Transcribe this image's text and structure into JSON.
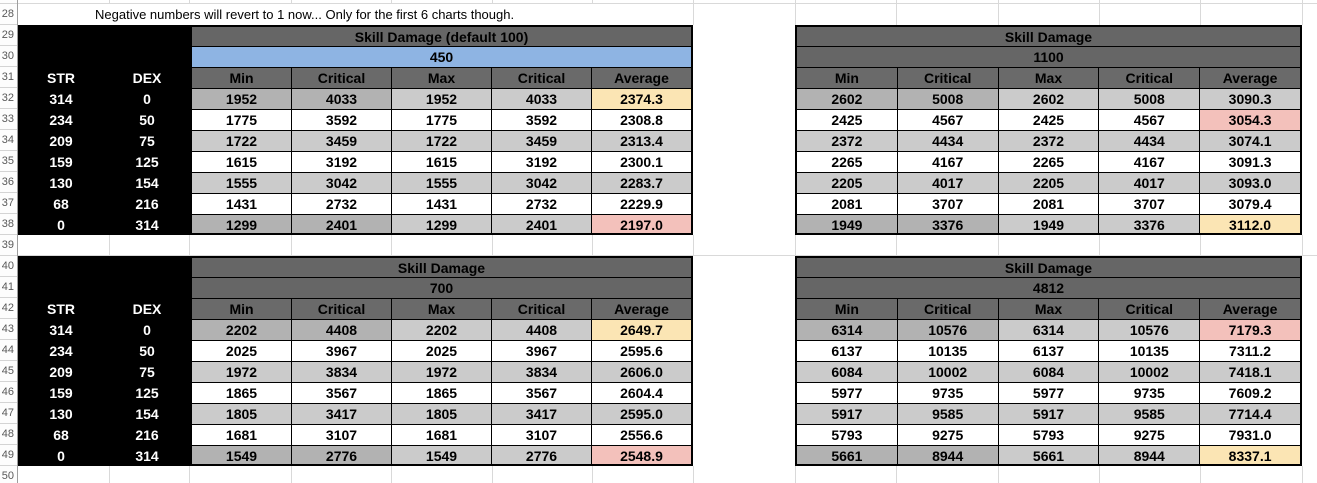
{
  "note": "Negative numbers will revert to 1 now... Only for the first 6 charts though.",
  "row_numbers": [
    "28",
    "29",
    "30",
    "31",
    "32",
    "33",
    "34",
    "35",
    "36",
    "37",
    "38",
    "39",
    "40",
    "41",
    "42",
    "43",
    "44",
    "45",
    "46",
    "47",
    "48",
    "49",
    "50"
  ],
  "str_dex": {
    "str_label": "STR",
    "dex_label": "DEX",
    "pairs": [
      [
        "314",
        "0"
      ],
      [
        "234",
        "50"
      ],
      [
        "209",
        "75"
      ],
      [
        "159",
        "125"
      ],
      [
        "130",
        "154"
      ],
      [
        "68",
        "216"
      ],
      [
        "0",
        "314"
      ]
    ]
  },
  "columns": {
    "min": "Min",
    "crit1": "Critical",
    "max": "Max",
    "crit2": "Critical",
    "avg": "Average"
  },
  "colors": {
    "header_gray": "#666666",
    "subheader_blue": "#8EB4E3",
    "row_gray": "#CBCBCB",
    "row_edge_gray": "#B2B2B2",
    "highlight_yellow": "#FBE5B4",
    "highlight_pink": "#F3C1BB"
  },
  "tables": [
    {
      "title": "Skill Damage (default 100)",
      "skill_value": "450",
      "rows": [
        {
          "min": "1952",
          "crit1": "4033",
          "max": "1952",
          "crit2": "4033",
          "avg": "2374.3",
          "avg_hl": "yellow"
        },
        {
          "min": "1775",
          "crit1": "3592",
          "max": "1775",
          "crit2": "3592",
          "avg": "2308.8",
          "avg_hl": null
        },
        {
          "min": "1722",
          "crit1": "3459",
          "max": "1722",
          "crit2": "3459",
          "avg": "2313.4",
          "avg_hl": null
        },
        {
          "min": "1615",
          "crit1": "3192",
          "max": "1615",
          "crit2": "3192",
          "avg": "2300.1",
          "avg_hl": null
        },
        {
          "min": "1555",
          "crit1": "3042",
          "max": "1555",
          "crit2": "3042",
          "avg": "2283.7",
          "avg_hl": null
        },
        {
          "min": "1431",
          "crit1": "2732",
          "max": "1431",
          "crit2": "2732",
          "avg": "2229.9",
          "avg_hl": null
        },
        {
          "min": "1299",
          "crit1": "2401",
          "max": "1299",
          "crit2": "2401",
          "avg": "2197.0",
          "avg_hl": "pink"
        }
      ]
    },
    {
      "title": "Skill Damage",
      "skill_value": "1100",
      "rows": [
        {
          "min": "2602",
          "crit1": "5008",
          "max": "2602",
          "crit2": "5008",
          "avg": "3090.3",
          "avg_hl": null
        },
        {
          "min": "2425",
          "crit1": "4567",
          "max": "2425",
          "crit2": "4567",
          "avg": "3054.3",
          "avg_hl": "pink"
        },
        {
          "min": "2372",
          "crit1": "4434",
          "max": "2372",
          "crit2": "4434",
          "avg": "3074.1",
          "avg_hl": null
        },
        {
          "min": "2265",
          "crit1": "4167",
          "max": "2265",
          "crit2": "4167",
          "avg": "3091.3",
          "avg_hl": null
        },
        {
          "min": "2205",
          "crit1": "4017",
          "max": "2205",
          "crit2": "4017",
          "avg": "3093.0",
          "avg_hl": null
        },
        {
          "min": "2081",
          "crit1": "3707",
          "max": "2081",
          "crit2": "3707",
          "avg": "3079.4",
          "avg_hl": null
        },
        {
          "min": "1949",
          "crit1": "3376",
          "max": "1949",
          "crit2": "3376",
          "avg": "3112.0",
          "avg_hl": "yellow"
        }
      ]
    },
    {
      "title": "Skill Damage",
      "skill_value": "700",
      "rows": [
        {
          "min": "2202",
          "crit1": "4408",
          "max": "2202",
          "crit2": "4408",
          "avg": "2649.7",
          "avg_hl": "yellow"
        },
        {
          "min": "2025",
          "crit1": "3967",
          "max": "2025",
          "crit2": "3967",
          "avg": "2595.6",
          "avg_hl": null
        },
        {
          "min": "1972",
          "crit1": "3834",
          "max": "1972",
          "crit2": "3834",
          "avg": "2606.0",
          "avg_hl": null
        },
        {
          "min": "1865",
          "crit1": "3567",
          "max": "1865",
          "crit2": "3567",
          "avg": "2604.4",
          "avg_hl": null
        },
        {
          "min": "1805",
          "crit1": "3417",
          "max": "1805",
          "crit2": "3417",
          "avg": "2595.0",
          "avg_hl": null
        },
        {
          "min": "1681",
          "crit1": "3107",
          "max": "1681",
          "crit2": "3107",
          "avg": "2556.6",
          "avg_hl": null
        },
        {
          "min": "1549",
          "crit1": "2776",
          "max": "1549",
          "crit2": "2776",
          "avg": "2548.9",
          "avg_hl": "pink"
        }
      ]
    },
    {
      "title": "Skill Damage",
      "skill_value": "4812",
      "rows": [
        {
          "min": "6314",
          "crit1": "10576",
          "max": "6314",
          "crit2": "10576",
          "avg": "7179.3",
          "avg_hl": "pink"
        },
        {
          "min": "6137",
          "crit1": "10135",
          "max": "6137",
          "crit2": "10135",
          "avg": "7311.2",
          "avg_hl": null
        },
        {
          "min": "6084",
          "crit1": "10002",
          "max": "6084",
          "crit2": "10002",
          "avg": "7418.1",
          "avg_hl": null
        },
        {
          "min": "5977",
          "crit1": "9735",
          "max": "5977",
          "crit2": "9735",
          "avg": "7609.2",
          "avg_hl": null
        },
        {
          "min": "5917",
          "crit1": "9585",
          "max": "5917",
          "crit2": "9585",
          "avg": "7714.4",
          "avg_hl": null
        },
        {
          "min": "5793",
          "crit1": "9275",
          "max": "5793",
          "crit2": "9275",
          "avg": "7931.0",
          "avg_hl": null
        },
        {
          "min": "5661",
          "crit1": "8944",
          "max": "5661",
          "crit2": "8944",
          "avg": "8337.1",
          "avg_hl": "yellow"
        }
      ]
    }
  ]
}
